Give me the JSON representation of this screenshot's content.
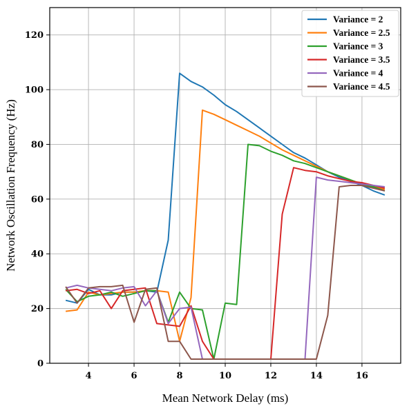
{
  "chart_data": {
    "type": "line",
    "title": "",
    "xlabel": "Mean Network Delay (ms)",
    "ylabel": "Network Oscillation Frequency (Hz)",
    "xlim": [
      2.3,
      17.7
    ],
    "ylim": [
      0,
      130
    ],
    "xticks": [
      4,
      6,
      8,
      10,
      12,
      14,
      16
    ],
    "yticks": [
      0,
      20,
      40,
      60,
      80,
      100,
      120
    ],
    "grid": true,
    "legend_position": "top-right",
    "series": [
      {
        "name": "Variance = 2",
        "color": "#1f77b4",
        "x": [
          3,
          3.5,
          4,
          4.5,
          5,
          5.5,
          6,
          6.5,
          7,
          7.5,
          8,
          8.5,
          9,
          9.5,
          10,
          10.5,
          11,
          11.5,
          12,
          12.5,
          13,
          13.5,
          14,
          14.5,
          15,
          15.5,
          16,
          16.5,
          17
        ],
        "y": [
          23,
          22,
          27,
          25,
          25,
          26,
          26,
          26.5,
          26,
          45,
          106,
          103,
          101,
          98,
          94.5,
          92,
          89,
          86,
          83,
          80,
          77,
          75,
          72.5,
          70,
          68,
          66.5,
          65,
          63,
          61.5
        ]
      },
      {
        "name": "Variance = 2.5",
        "color": "#ff7f0e",
        "x": [
          3,
          3.5,
          4,
          4.5,
          5,
          5.5,
          6,
          6.5,
          7,
          7.5,
          8,
          8.5,
          9,
          9.5,
          10,
          10.5,
          11,
          11.5,
          12,
          12.5,
          13,
          13.5,
          14,
          14.5,
          15,
          15.5,
          16,
          16.5,
          17
        ],
        "y": [
          19,
          19.5,
          26,
          25,
          25.5,
          26,
          26,
          26.5,
          26.5,
          26,
          8,
          24,
          92.5,
          91,
          89,
          87,
          85,
          83,
          80.5,
          78,
          76,
          74,
          72,
          70,
          68.5,
          67,
          65.5,
          64.5,
          63.5
        ]
      },
      {
        "name": "Variance = 3",
        "color": "#2ca02c",
        "x": [
          3,
          3.5,
          4,
          4.5,
          5,
          5.5,
          6,
          6.5,
          7,
          7.5,
          8,
          8.5,
          9,
          9.5,
          10,
          10.5,
          11,
          11.5,
          12,
          12.5,
          13,
          13.5,
          14,
          14.5,
          15,
          15.5,
          16,
          16.5,
          17
        ],
        "y": [
          27,
          22.5,
          24.5,
          25,
          26,
          24.5,
          25.5,
          26.5,
          26.5,
          15,
          26,
          20,
          19.5,
          1.5,
          22,
          21.5,
          80,
          79.5,
          77.5,
          76,
          74,
          73,
          71.5,
          70,
          68.5,
          67,
          65.5,
          64.5,
          63
        ]
      },
      {
        "name": "Variance = 3.5",
        "color": "#d62728",
        "x": [
          3,
          3.5,
          4,
          4.5,
          5,
          5.5,
          6,
          6.5,
          7,
          7.5,
          8,
          8.5,
          9,
          9.5,
          10,
          10.5,
          11,
          11.5,
          12,
          12.5,
          13,
          13.5,
          14,
          14.5,
          15,
          15.5,
          16,
          16.5,
          17
        ],
        "y": [
          26.5,
          27,
          25.5,
          26.5,
          20,
          26.5,
          27,
          27.5,
          14.5,
          14,
          13.5,
          21,
          8,
          1.5,
          1.5,
          1.5,
          1.5,
          1.5,
          1.5,
          54.5,
          71.5,
          70.5,
          70,
          68.5,
          67.5,
          66.5,
          66,
          65,
          64
        ]
      },
      {
        "name": "Variance = 4",
        "color": "#9467bd",
        "x": [
          3,
          3.5,
          4,
          4.5,
          5,
          5.5,
          6,
          6.5,
          7,
          7.5,
          8,
          8.5,
          9,
          9.5,
          10,
          10.5,
          11,
          11.5,
          12,
          12.5,
          13,
          13.5,
          14,
          14.5,
          15,
          15.5,
          16,
          16.5,
          17
        ],
        "y": [
          27.5,
          28.5,
          27.5,
          27,
          26.5,
          27.5,
          28,
          21,
          26.5,
          14.5,
          20,
          20.5,
          1.5,
          1.5,
          1.5,
          1.5,
          1.5,
          1.5,
          1.5,
          1.5,
          1.5,
          1.5,
          68,
          67,
          66.5,
          66,
          65.5,
          65,
          64.5
        ]
      },
      {
        "name": "Variance = 4.5",
        "color": "#8c564b",
        "x": [
          3,
          3.5,
          4,
          4.5,
          5,
          5.5,
          6,
          6.5,
          7,
          7.5,
          8,
          8.5,
          9,
          9.5,
          10,
          10.5,
          11,
          11.5,
          12,
          12.5,
          13,
          13.5,
          14,
          14.5,
          15,
          15.5,
          16,
          16.5,
          17
        ],
        "y": [
          28,
          22,
          27.5,
          28,
          28,
          28.5,
          15,
          27,
          27.5,
          8,
          8,
          1.5,
          1.5,
          1.5,
          1.5,
          1.5,
          1.5,
          1.5,
          1.5,
          1.5,
          1.5,
          1.5,
          1.5,
          17.5,
          64.5,
          65,
          65,
          64,
          63
        ]
      }
    ]
  }
}
